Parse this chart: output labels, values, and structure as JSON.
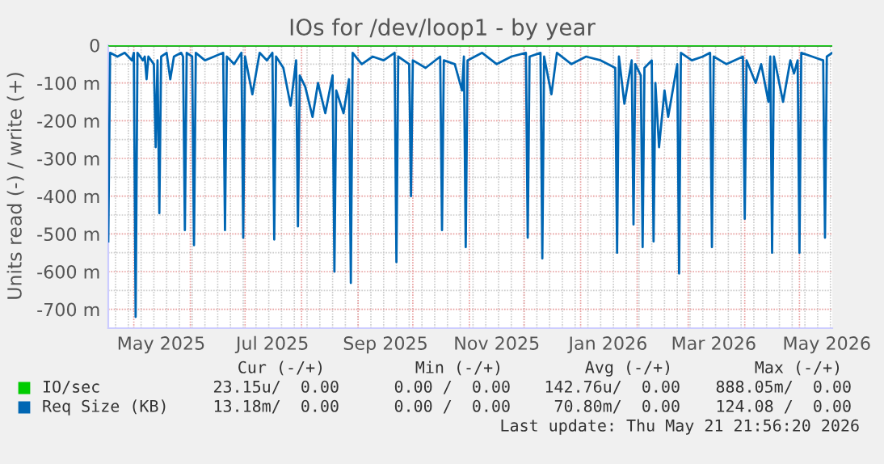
{
  "chart_data": {
    "type": "line",
    "title": "IOs for /dev/loop1 - by year",
    "ylabel": "Units read (-) / write (+)",
    "xlim": [
      "2025-04-17",
      "2026-05-19"
    ],
    "ylim": [
      -750,
      0
    ],
    "xticks": [
      {
        "value": "2025-05-16",
        "label": "May 2025"
      },
      {
        "value": "2025-07-16",
        "label": "Jul 2025"
      },
      {
        "value": "2025-09-16",
        "label": "Sep 2025"
      },
      {
        "value": "2025-11-16",
        "label": "Nov 2025"
      },
      {
        "value": "2026-01-16",
        "label": "Jan 2026"
      },
      {
        "value": "2026-03-15",
        "label": "Mar 2026"
      },
      {
        "value": "2026-05-16",
        "label": "May 2026"
      }
    ],
    "yticks": [
      0,
      {
        "value": -100,
        "label": "-100 m"
      },
      {
        "value": -200,
        "label": "-200 m"
      },
      {
        "value": -300,
        "label": "-300 m"
      },
      {
        "value": -400,
        "label": "-400 m"
      },
      {
        "value": -500,
        "label": "-500 m"
      },
      {
        "value": -600,
        "label": "-600 m"
      },
      {
        "value": -700,
        "label": "-700 m"
      }
    ],
    "grid": true,
    "legend": "bottom",
    "series": [
      {
        "name": "IO/sec",
        "color": "#00cc00",
        "x": [
          "2025-04-17",
          "2026-05-19"
        ],
        "values": [
          0,
          0
        ]
      },
      {
        "name": "Req Size (KB)",
        "color": "#0066b3",
        "x": [
          "2025-04-17",
          "2025-04-18",
          "2025-04-22",
          "2025-04-26",
          "2025-04-30",
          "2025-05-01",
          "2025-05-02",
          "2025-05-03",
          "2025-05-06",
          "2025-05-07",
          "2025-05-08",
          "2025-05-09",
          "2025-05-12",
          "2025-05-13",
          "2025-05-14",
          "2025-05-15",
          "2025-05-16",
          "2025-05-19",
          "2025-05-21",
          "2025-05-23",
          "2025-05-27",
          "2025-05-28",
          "2025-05-29",
          "2025-05-30",
          "2025-06-02",
          "2025-06-03",
          "2025-06-04",
          "2025-06-09",
          "2025-06-14",
          "2025-06-19",
          "2025-06-20",
          "2025-06-21",
          "2025-06-25",
          "2025-06-29",
          "2025-06-30",
          "2025-07-01",
          "2025-07-05",
          "2025-07-09",
          "2025-07-13",
          "2025-07-16",
          "2025-07-17",
          "2025-07-18",
          "2025-07-22",
          "2025-07-26",
          "2025-07-29",
          "2025-07-30",
          "2025-07-31",
          "2025-08-03",
          "2025-08-07",
          "2025-08-10",
          "2025-08-14",
          "2025-08-18",
          "2025-08-19",
          "2025-08-20",
          "2025-08-24",
          "2025-08-27",
          "2025-08-28",
          "2025-08-29",
          "2025-09-03",
          "2025-09-09",
          "2025-09-15",
          "2025-09-21",
          "2025-09-22",
          "2025-09-23",
          "2025-09-29",
          "2025-09-30",
          "2025-10-01",
          "2025-10-08",
          "2025-10-16",
          "2025-10-17",
          "2025-10-18",
          "2025-10-24",
          "2025-10-28",
          "2025-10-29",
          "2025-10-30",
          "2025-10-31",
          "2025-11-08",
          "2025-11-16",
          "2025-11-24",
          "2025-12-02",
          "2025-12-03",
          "2025-12-04",
          "2025-12-10",
          "2025-12-11",
          "2025-12-12",
          "2025-12-16",
          "2025-12-19",
          "2025-12-27",
          "2026-01-04",
          "2026-01-12",
          "2026-01-20",
          "2026-01-21",
          "2026-01-22",
          "2026-01-25",
          "2026-01-29",
          "2026-01-30",
          "2026-01-31",
          "2026-02-03",
          "2026-02-04",
          "2026-02-05",
          "2026-02-09",
          "2026-02-10",
          "2026-02-11",
          "2026-02-13",
          "2026-02-16",
          "2026-02-18",
          "2026-02-23",
          "2026-02-24",
          "2026-02-25",
          "2026-03-03",
          "2026-03-09",
          "2026-03-13",
          "2026-03-14",
          "2026-03-15",
          "2026-03-22",
          "2026-03-31",
          "2026-04-01",
          "2026-04-02",
          "2026-04-07",
          "2026-04-10",
          "2026-04-14",
          "2026-04-15",
          "2026-04-16",
          "2026-04-17",
          "2026-04-22",
          "2026-04-26",
          "2026-04-28",
          "2026-04-30",
          "2026-05-01",
          "2026-05-02",
          "2026-05-08",
          "2026-05-14",
          "2026-05-15",
          "2026-05-16",
          "2026-05-19"
        ],
        "values": [
          -520,
          -20,
          -30,
          -20,
          -40,
          -20,
          -720,
          -20,
          -40,
          -30,
          -90,
          -30,
          -50,
          -270,
          -40,
          -445,
          -30,
          -20,
          -90,
          -30,
          -20,
          -30,
          -490,
          -20,
          -30,
          -530,
          -20,
          -40,
          -30,
          -20,
          -490,
          -30,
          -50,
          -20,
          -510,
          -30,
          -130,
          -20,
          -40,
          -20,
          -515,
          -30,
          -60,
          -160,
          -40,
          -480,
          -80,
          -110,
          -190,
          -100,
          -180,
          -80,
          -600,
          -120,
          -180,
          -90,
          -630,
          -20,
          -50,
          -30,
          -40,
          -20,
          -575,
          -30,
          -50,
          -400,
          -40,
          -60,
          -30,
          -490,
          -40,
          -50,
          -120,
          -30,
          -535,
          -40,
          -20,
          -50,
          -30,
          -20,
          -510,
          -30,
          -20,
          -565,
          -30,
          -130,
          -20,
          -50,
          -30,
          -40,
          -60,
          -550,
          -30,
          -155,
          -40,
          -475,
          -50,
          -80,
          -535,
          -60,
          -40,
          -520,
          -100,
          -270,
          -120,
          -190,
          -50,
          -605,
          -20,
          -40,
          -30,
          -20,
          -535,
          -30,
          -50,
          -30,
          -460,
          -40,
          -100,
          -50,
          -150,
          -30,
          -550,
          -30,
          -150,
          -40,
          -75,
          -40,
          -550,
          -20,
          -30,
          -40,
          -510,
          -30,
          -20
        ]
      }
    ],
    "annotations": [
      "Cur (-/+)",
      "Min (-/+)",
      "Avg (-/+)",
      "Max (-/+)",
      "23.15u/  0.00",
      "0.00 /  0.00",
      "142.76u/  0.00",
      "888.05m/  0.00",
      "13.18m/  0.00",
      "0.00 /  0.00",
      "70.80m/  0.00",
      "124.08 /  0.00",
      "Last update: Thu May 21 21:56:20 2026"
    ]
  }
}
